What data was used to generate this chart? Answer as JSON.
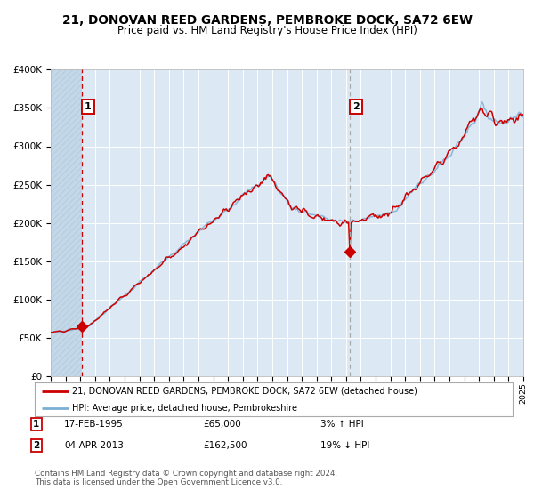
{
  "title": "21, DONOVAN REED GARDENS, PEMBROKE DOCK, SA72 6EW",
  "subtitle": "Price paid vs. HM Land Registry's House Price Index (HPI)",
  "legend_line1": "21, DONOVAN REED GARDENS, PEMBROKE DOCK, SA72 6EW (detached house)",
  "legend_line2": "HPI: Average price, detached house, Pembrokeshire",
  "note1_date": "17-FEB-1995",
  "note1_price": "£65,000",
  "note1_hpi": "3% ↑ HPI",
  "note2_date": "04-APR-2013",
  "note2_price": "£162,500",
  "note2_hpi": "19% ↓ HPI",
  "footer": "Contains HM Land Registry data © Crown copyright and database right 2024.\nThis data is licensed under the Open Government Licence v3.0.",
  "sale1_year": 1995.12,
  "sale1_price": 65000,
  "sale2_year": 2013.27,
  "sale2_price": 162500,
  "hpi_color": "#7bafd4",
  "price_color": "#cc0000",
  "sale_dot_color": "#cc0000",
  "vline1_color": "#cc0000",
  "vline2_color": "#aaaaaa",
  "bg_color": "#dce9f5",
  "hatch_color": "#c4d8ea",
  "grid_color": "#ffffff",
  "ymax": 400000,
  "ymin": 0,
  "xmin": 1993,
  "xmax": 2025
}
